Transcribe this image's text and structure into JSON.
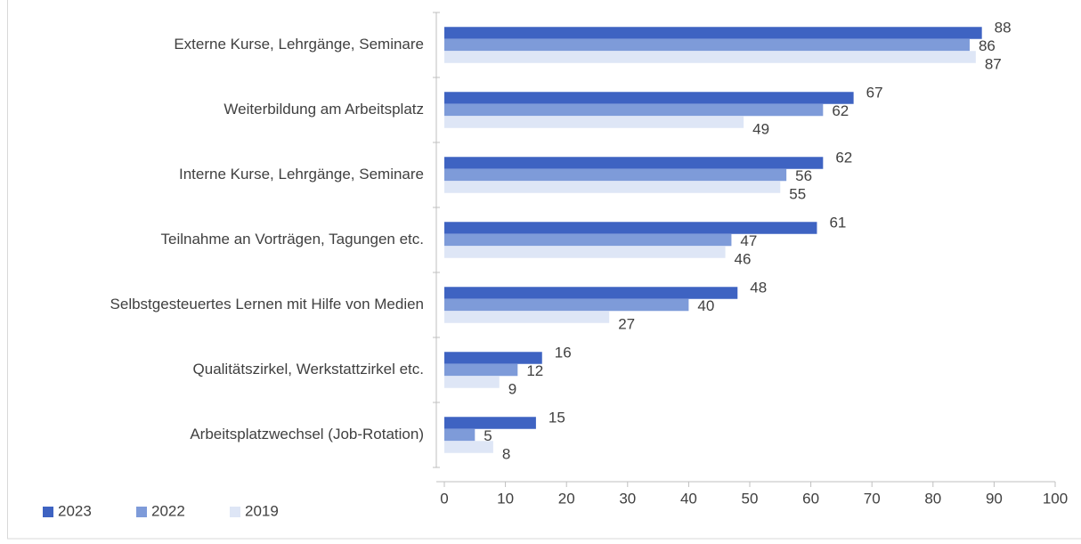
{
  "chart_data": {
    "type": "bar",
    "orientation": "horizontal",
    "categories": [
      "Externe Kurse, Lehrgänge, Seminare",
      "Weiterbildung am Arbeitsplatz",
      "Interne Kurse, Lehrgänge, Seminare",
      "Teilnahme an Vorträgen, Tagungen etc.",
      "Selbstgesteuertes Lernen mit Hilfe von Medien",
      "Qualitätszirkel, Werkstattzirkel etc.",
      "Arbeitsplatzwechsel (Job-Rotation)"
    ],
    "series": [
      {
        "name": "2023",
        "color": "#3e63c2",
        "values": [
          88,
          67,
          62,
          61,
          48,
          16,
          15
        ]
      },
      {
        "name": "2022",
        "color": "#7e9bd9",
        "values": [
          86,
          62,
          56,
          47,
          40,
          12,
          5
        ]
      },
      {
        "name": "2019",
        "color": "#dee6f6",
        "values": [
          87,
          49,
          55,
          46,
          27,
          9,
          8
        ]
      }
    ],
    "xlim": [
      0,
      100
    ],
    "xticks": [
      0,
      10,
      20,
      30,
      40,
      50,
      60,
      70,
      80,
      90,
      100
    ],
    "grid": false,
    "legend": "bottom-left",
    "data_labels": true
  }
}
